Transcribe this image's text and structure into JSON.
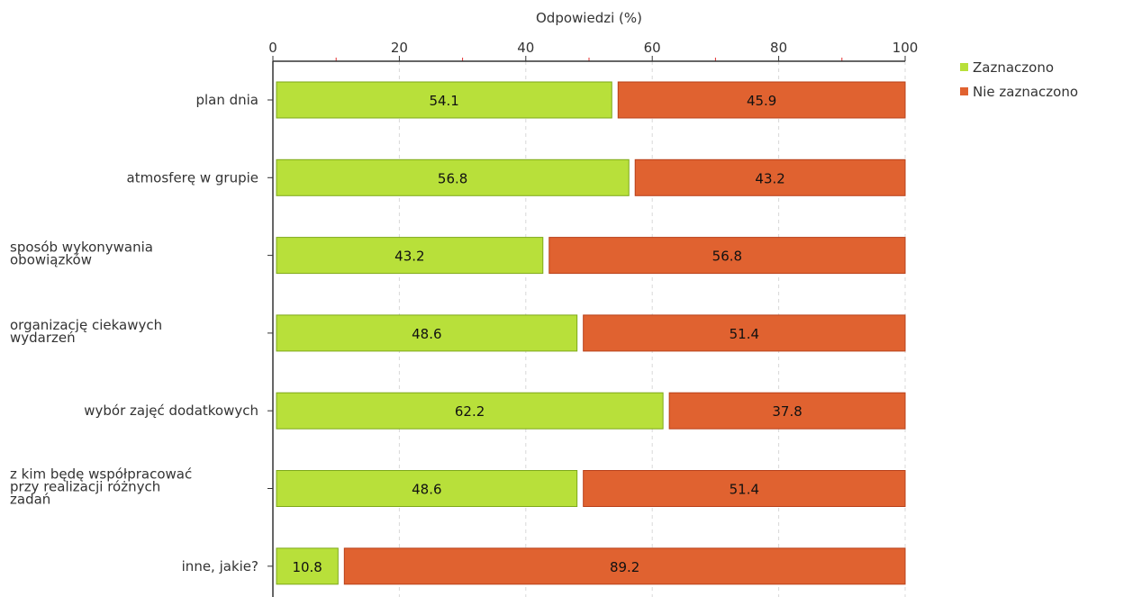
{
  "chart_data": {
    "type": "bar",
    "orientation": "horizontal",
    "stacked": true,
    "xlabel": "Odpowiedzi (%)",
    "xlim": [
      0,
      100
    ],
    "x_ticks": [
      "0",
      "20",
      "40",
      "60",
      "80",
      "100"
    ],
    "grid": true,
    "legend_position": "top-right",
    "categories": [
      [
        "plan dnia"
      ],
      [
        "atmosferę w grupie"
      ],
      [
        "sposób wykonywania",
        "obowiązków"
      ],
      [
        "organizację ciekawych",
        "wydarzeń"
      ],
      [
        "wybór zajęć dodatkowych"
      ],
      [
        "z kim będę współpracować",
        "przy realizacji różnych",
        "zadań"
      ],
      [
        "inne, jakie?"
      ]
    ],
    "series": [
      {
        "name": "Zaznaczono",
        "color": "#b8e03a",
        "stroke": "#7ea81a",
        "values": [
          54.1,
          56.8,
          43.2,
          48.6,
          62.2,
          48.6,
          10.8
        ],
        "labels": [
          "54.1",
          "56.8",
          "43.2",
          "48.6",
          "62.2",
          "48.6",
          "10.8"
        ]
      },
      {
        "name": "Nie zaznaczono",
        "color": "#e06230",
        "stroke": "#b8401a",
        "values": [
          45.9,
          43.2,
          56.8,
          51.4,
          37.8,
          51.4,
          89.2
        ],
        "labels": [
          "45.9",
          "43.2",
          "56.8",
          "51.4",
          "37.8",
          "51.4",
          "89.2"
        ]
      }
    ]
  }
}
